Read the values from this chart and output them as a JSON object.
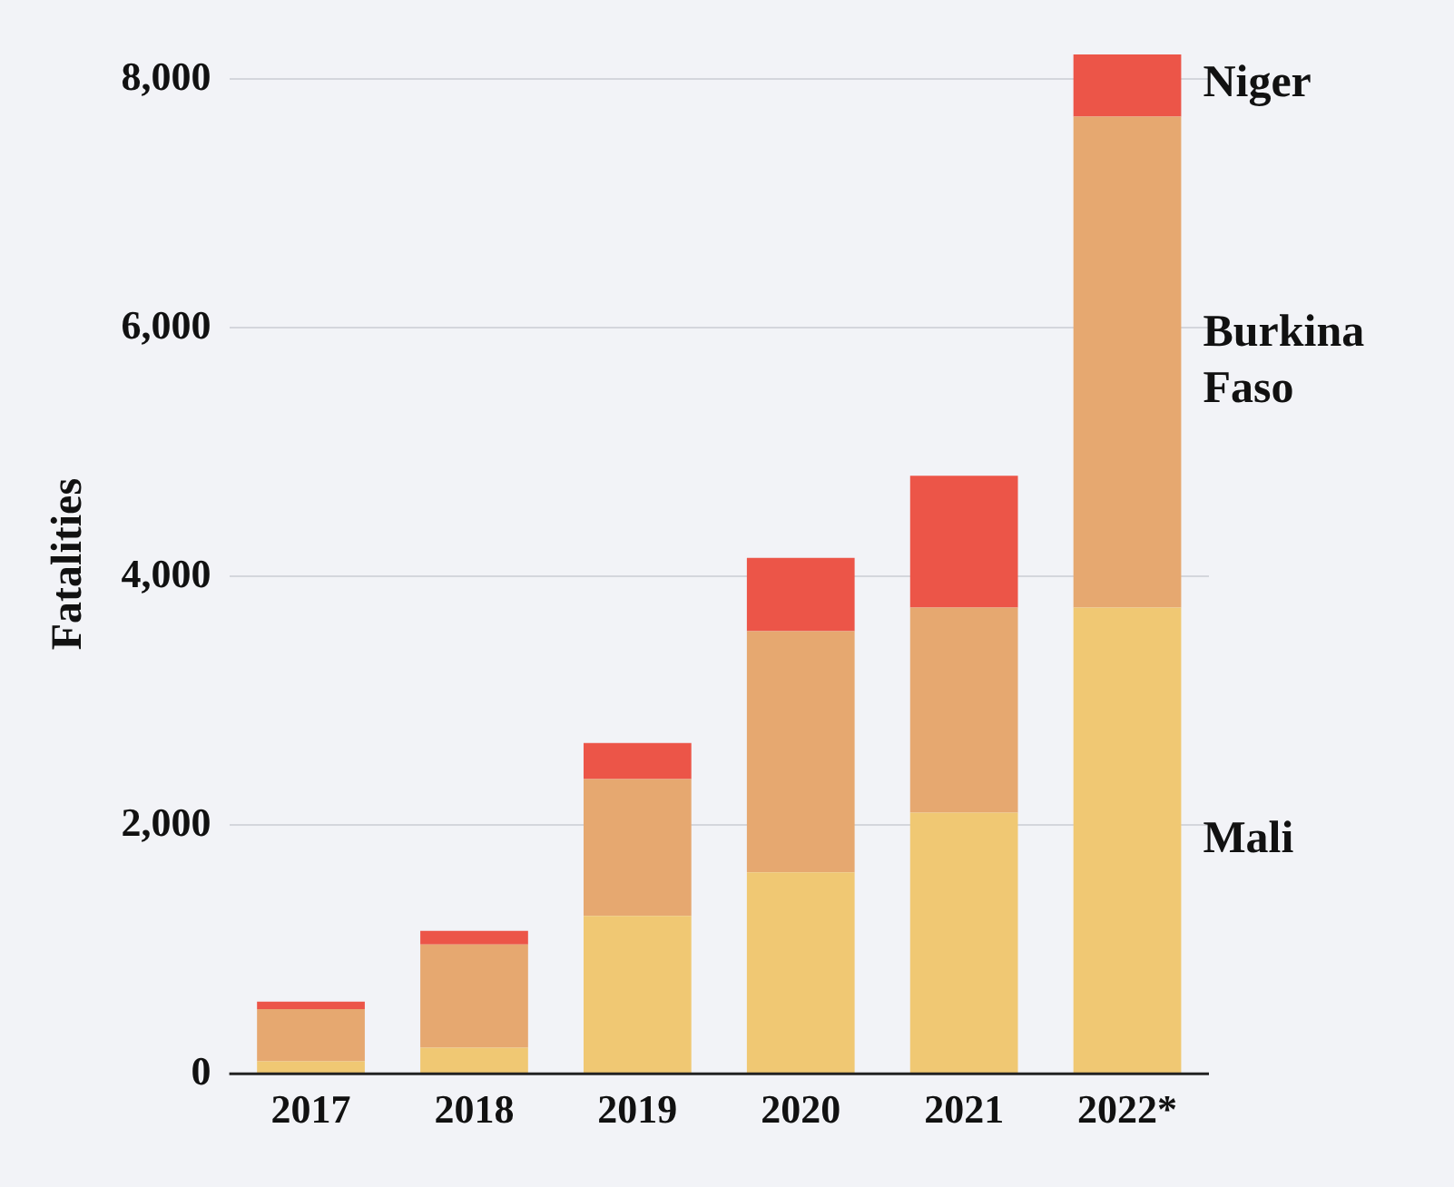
{
  "chart_data": {
    "type": "bar",
    "stacked": true,
    "ylabel": "Fatalities",
    "categories": [
      "2017",
      "2018",
      "2019",
      "2020",
      "2021",
      "2022*"
    ],
    "series": [
      {
        "name": "Mali",
        "color": "#f0c873",
        "values": [
          100,
          210,
          1270,
          1620,
          2100,
          3750
        ]
      },
      {
        "name": "Burkina Faso",
        "color": "#e6a870",
        "values": [
          420,
          830,
          1100,
          1940,
          1650,
          3950
        ]
      },
      {
        "name": "Niger",
        "color": "#ec5548",
        "values": [
          60,
          110,
          290,
          590,
          1060,
          520
        ]
      }
    ],
    "ylim": [
      0,
      8200
    ],
    "yticks": [
      {
        "value": 0,
        "label": "0"
      },
      {
        "value": 2000,
        "label": "2,000"
      },
      {
        "value": 4000,
        "label": "4,000"
      },
      {
        "value": 6000,
        "label": "6,000"
      },
      {
        "value": 8000,
        "label": "8,000"
      }
    ],
    "grid": "y",
    "legend": false
  }
}
